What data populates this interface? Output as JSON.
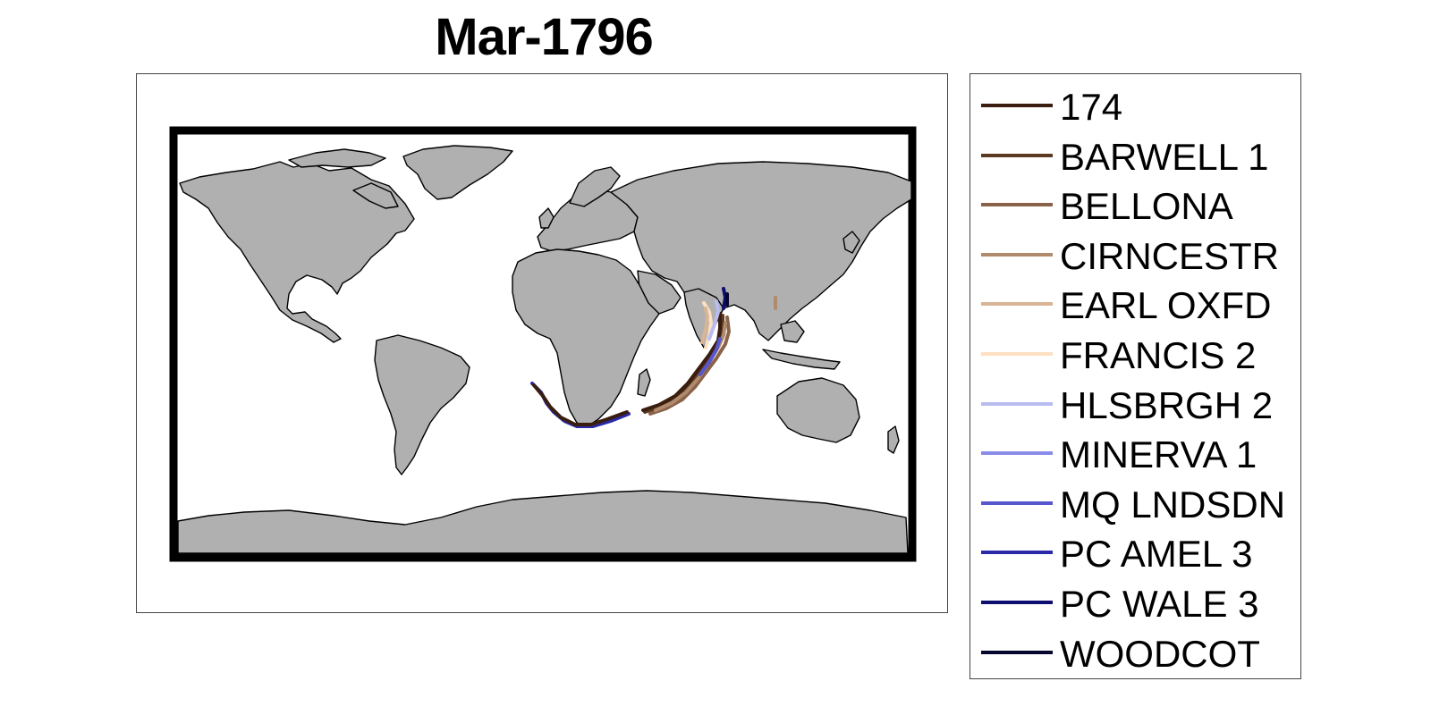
{
  "title": "Mar-1796",
  "map": {
    "land_color": "#b0b0b0",
    "coast_color": "#000000",
    "frame_color": "#000000",
    "ocean_color": "#ffffff"
  },
  "legend": {
    "items": [
      {
        "label": "174",
        "color": "#3a1d0e"
      },
      {
        "label": "BARWELL 1",
        "color": "#5c3a22"
      },
      {
        "label": "BELLONA",
        "color": "#8a6248"
      },
      {
        "label": "CIRNCESTR",
        "color": "#b08a6c"
      },
      {
        "label": "EARL OXFD",
        "color": "#d9b598"
      },
      {
        "label": "FRANCIS 2",
        "color": "#fde0c2"
      },
      {
        "label": "HLSBRGH 2",
        "color": "#b8bcee"
      },
      {
        "label": "MINERVA 1",
        "color": "#8a8ce8"
      },
      {
        "label": "MQ LNDSDN",
        "color": "#5656cf"
      },
      {
        "label": "PC AMEL 3",
        "color": "#2a2aa8"
      },
      {
        "label": "PC WALE 3",
        "color": "#0e0e70"
      },
      {
        "label": "WOODCOT",
        "color": "#06062e"
      }
    ]
  }
}
